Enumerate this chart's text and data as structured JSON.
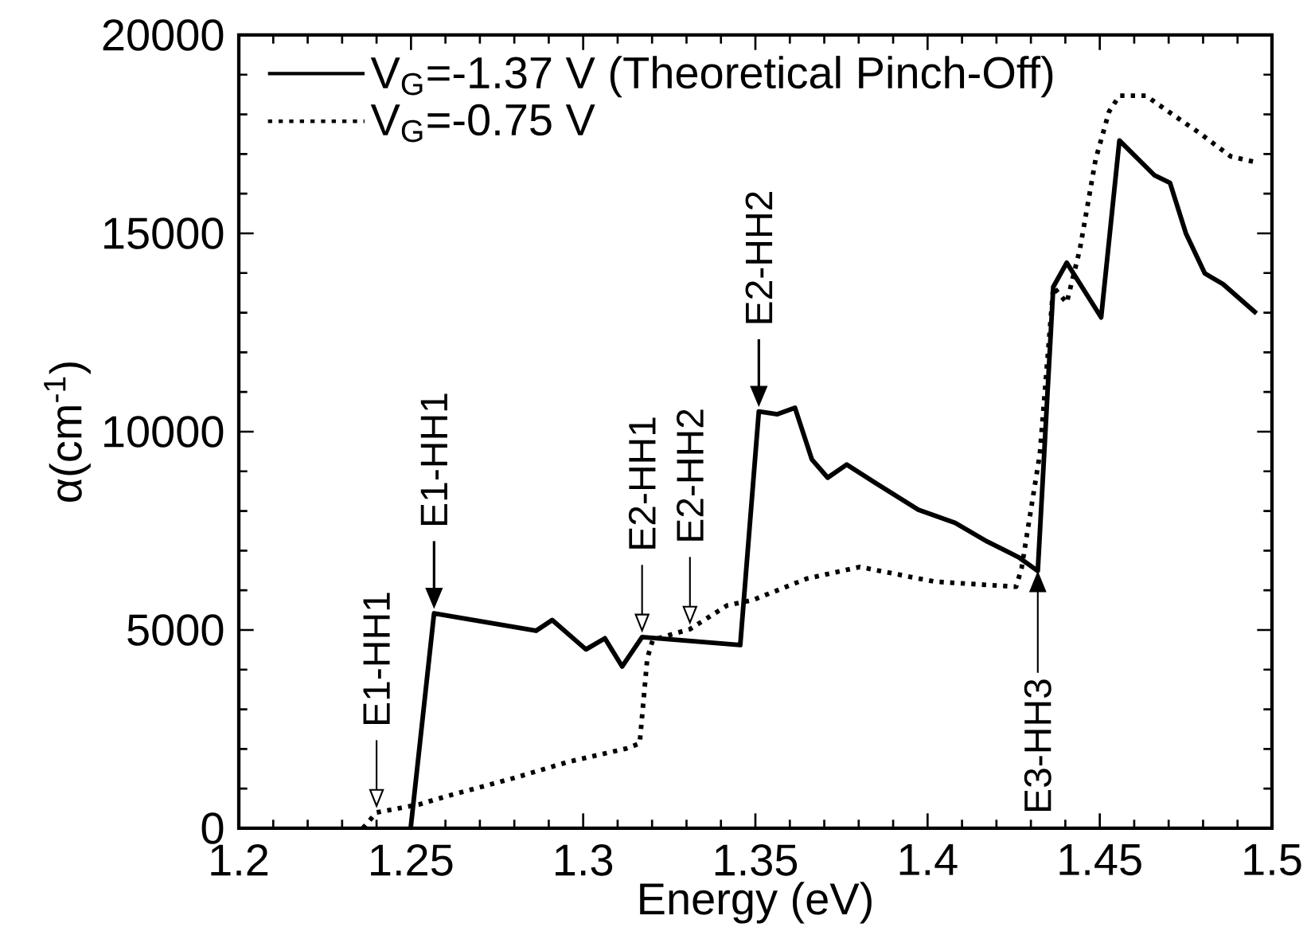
{
  "chart_data": {
    "type": "line",
    "xlabel": "Energy (eV)",
    "ylabel": "α(cm$^{-1}$)",
    "xlim": [
      1.2,
      1.5
    ],
    "xticks": [
      1.2,
      1.25,
      1.3,
      1.35,
      1.4,
      1.45,
      1.5
    ],
    "ylim": [
      0,
      20000
    ],
    "yticks": [
      0,
      5000,
      10000,
      15000,
      20000
    ],
    "grid": false,
    "legend": "top left",
    "marker": "none",
    "series": [
      {
        "name": "V$_{G}$=-1.37 V (Theoretical Pinch-Off)",
        "color": "#000000",
        "line_style": "solid",
        "x": [
          1.2499,
          1.2567,
          1.2863,
          1.291,
          1.3008,
          1.3063,
          1.3113,
          1.3171,
          1.3456,
          1.351,
          1.3564,
          1.3615,
          1.3664,
          1.371,
          1.3765,
          1.385,
          1.3973,
          1.408,
          1.4173,
          1.4265,
          1.432,
          1.4365,
          1.4404,
          1.4504,
          1.4557,
          1.4658,
          1.4704,
          1.475,
          1.4805,
          1.4858,
          1.4955
        ],
        "values": [
          0,
          5420,
          4980,
          5250,
          4510,
          4790,
          4080,
          4820,
          4620,
          10510,
          10440,
          10600,
          9300,
          8840,
          9170,
          8700,
          8030,
          7700,
          7230,
          6830,
          6490,
          13650,
          14260,
          12880,
          17340,
          16470,
          16270,
          15000,
          13990,
          13720,
          12980
        ]
      },
      {
        "name": "V$_{G}$=-0.75 V",
        "color": "#000000",
        "line_style": "dotted",
        "x": [
          1.236,
          1.24,
          1.2523,
          1.26,
          1.28,
          1.2955,
          1.3125,
          1.3164,
          1.3186,
          1.3202,
          1.331,
          1.3418,
          1.3494,
          1.3648,
          1.3803,
          1.4019,
          1.4257,
          1.4273,
          1.4326,
          1.4365,
          1.4404,
          1.4442,
          1.4488,
          1.4527,
          1.4557,
          1.4634,
          1.4711,
          1.4788,
          1.488,
          1.4949
        ],
        "values": [
          0,
          400,
          600,
          800,
          1270,
          1670,
          2010,
          2140,
          4280,
          4750,
          5020,
          5620,
          5760,
          6290,
          6590,
          6220,
          6090,
          6560,
          9440,
          13650,
          13250,
          14590,
          16870,
          18070,
          18470,
          18470,
          18000,
          17540,
          16940,
          16800
        ]
      }
    ],
    "annotations": [
      {
        "text": "E1-HH1",
        "x": 1.24,
        "y": 400
      },
      {
        "text": "E1-HH1",
        "x": 1.2567,
        "y": 5420
      },
      {
        "text": "E2-HH1",
        "x": 1.3171,
        "y": 4820
      },
      {
        "text": "E2-HH2",
        "x": 1.331,
        "y": 5020
      },
      {
        "text": "E2-HH2",
        "x": 1.351,
        "y": 10510
      },
      {
        "text": "E3-HH3",
        "x": 1.432,
        "y": 6490
      }
    ]
  }
}
